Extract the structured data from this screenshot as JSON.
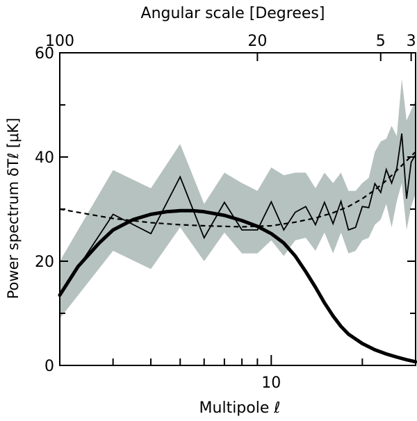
{
  "chart_data": {
    "type": "line",
    "title": "",
    "xlabel": "Multipole ℓ",
    "ylabel": "Power spectrum δTℓ [μK]",
    "top_axis_label": "Angular scale [Degrees]",
    "xscale": "log",
    "xlim": [
      2,
      30
    ],
    "ylim": [
      0,
      60
    ],
    "yticks": [
      0,
      20,
      40,
      60
    ],
    "bottom_tick_labels": [
      {
        "value": 10,
        "label": "10"
      }
    ],
    "top_tick_labels": [
      {
        "value": 2,
        "label": "100"
      },
      {
        "value": 9,
        "label": "20"
      },
      {
        "value": 23,
        "label": "5"
      },
      {
        "value": 29,
        "label": "3"
      }
    ],
    "bottom_minor_ticks": [
      3,
      4,
      5,
      6,
      7,
      8,
      9,
      20
    ],
    "series": [
      {
        "name": "measured",
        "style": "thin-solid",
        "color": "#000000",
        "x": [
          2,
          3,
          4,
          5,
          6,
          7,
          8,
          9,
          10,
          11,
          12,
          13,
          14,
          15,
          16,
          17,
          18,
          19,
          20,
          21,
          22,
          23,
          24,
          25,
          26,
          27,
          28,
          29,
          30
        ],
        "y": [
          13.5,
          29,
          25.3,
          36.2,
          24.5,
          31.3,
          26,
          26,
          31.4,
          26,
          29.4,
          30.5,
          27,
          31.3,
          27.2,
          31.5,
          26,
          26.5,
          30.5,
          30.3,
          34.9,
          33.2,
          37.6,
          35,
          37.8,
          44.5,
          32,
          39,
          40.5
        ]
      },
      {
        "name": "band-upper",
        "x": [
          2,
          3,
          4,
          5,
          6,
          7,
          8,
          9,
          10,
          11,
          12,
          13,
          14,
          15,
          16,
          17,
          18,
          19,
          20,
          21,
          22,
          23,
          24,
          25,
          26,
          27,
          28,
          29,
          30
        ],
        "y": [
          20,
          37.5,
          34,
          42.5,
          31,
          37,
          35,
          33.5,
          38,
          36.5,
          37,
          37,
          34,
          37,
          35,
          37,
          33.5,
          33.5,
          35,
          36,
          41,
          43,
          43.5,
          46,
          44,
          55,
          47,
          49,
          51
        ]
      },
      {
        "name": "band-lower",
        "x": [
          2,
          3,
          4,
          5,
          6,
          7,
          8,
          9,
          10,
          11,
          12,
          13,
          14,
          15,
          16,
          17,
          18,
          19,
          20,
          21,
          22,
          23,
          24,
          25,
          26,
          27,
          28,
          29,
          30
        ],
        "y": [
          9,
          22,
          18.5,
          26.5,
          20,
          25.5,
          21.5,
          21.5,
          24,
          21,
          24,
          24.5,
          22,
          25.5,
          21.5,
          25.5,
          21.5,
          22,
          24,
          24.5,
          27,
          28,
          31,
          26.5,
          31.5,
          35,
          26,
          30.5,
          33
        ]
      },
      {
        "name": "model-dashed",
        "style": "dashed",
        "x": [
          2,
          3,
          4,
          5,
          6,
          8,
          10,
          12,
          14,
          16,
          18,
          20,
          22,
          24,
          26,
          28,
          30
        ],
        "y": [
          30,
          28.2,
          27.4,
          27,
          26.8,
          26.6,
          26.8,
          27.5,
          28.3,
          29.3,
          30.5,
          32,
          33.7,
          35.5,
          37.4,
          39.3,
          41
        ]
      },
      {
        "name": "model-thick",
        "style": "thick-solid",
        "x": [
          2,
          2.3,
          2.7,
          3,
          3.5,
          4,
          4.5,
          5,
          5.5,
          6,
          7,
          8,
          9,
          10,
          11,
          12,
          13,
          14,
          15,
          16,
          17,
          18,
          20,
          22,
          24,
          26,
          28,
          30
        ],
        "y": [
          13.5,
          19,
          23.5,
          26,
          28,
          29,
          29.5,
          29.7,
          29.7,
          29.5,
          28.8,
          27.8,
          26.7,
          25.3,
          23.5,
          21,
          18,
          15,
          12,
          9.5,
          7.5,
          6,
          4.2,
          3,
          2.2,
          1.6,
          1.1,
          0.7
        ]
      }
    ],
    "colors": {
      "band": "#b6c2bf",
      "line": "#000000"
    }
  }
}
